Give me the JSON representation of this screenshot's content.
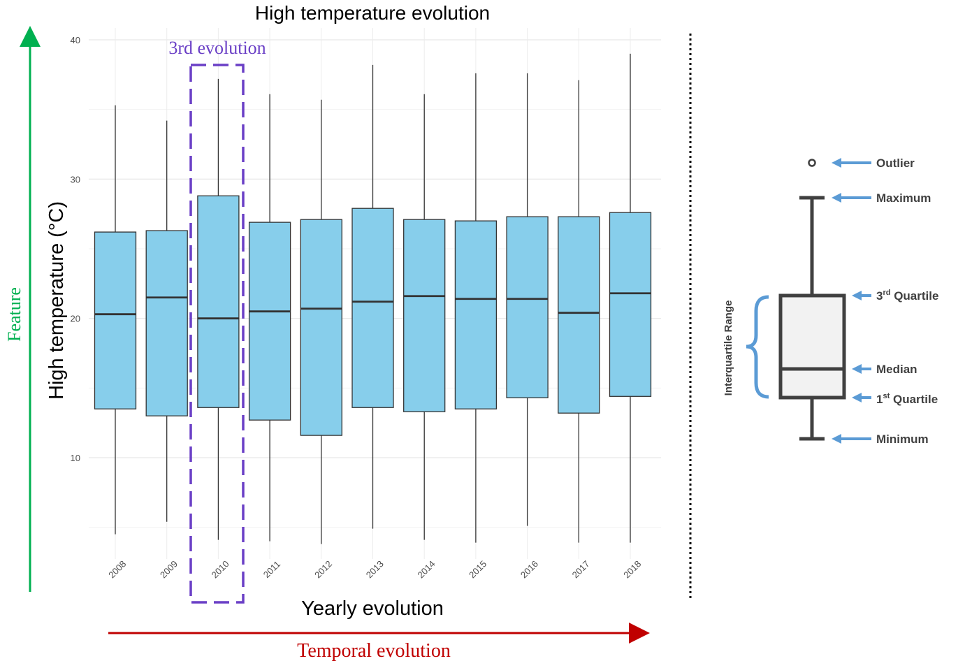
{
  "chart_data": {
    "type": "boxplot",
    "title": "High temperature evolution",
    "xlabel": "Yearly evolution",
    "ylabel": "High temperature (°C)",
    "ylim": [
      2.5,
      41
    ],
    "yticks": [
      10,
      20,
      30,
      40
    ],
    "grid": true,
    "box_color": "#87ceeb",
    "categories": [
      "2008",
      "2009",
      "2010",
      "2011",
      "2012",
      "2013",
      "2014",
      "2015",
      "2016",
      "2017",
      "2018"
    ],
    "boxes": [
      {
        "min": 4.5,
        "q1": 13.5,
        "median": 20.3,
        "q3": 26.2,
        "max": 35.3
      },
      {
        "min": 5.4,
        "q1": 13.0,
        "median": 21.5,
        "q3": 26.3,
        "max": 34.2
      },
      {
        "min": 4.1,
        "q1": 13.6,
        "median": 20.0,
        "q3": 28.8,
        "max": 37.2
      },
      {
        "min": 4.0,
        "q1": 12.7,
        "median": 20.5,
        "q3": 26.9,
        "max": 36.1
      },
      {
        "min": 3.8,
        "q1": 11.6,
        "median": 20.7,
        "q3": 27.1,
        "max": 35.7
      },
      {
        "min": 4.9,
        "q1": 13.6,
        "median": 21.2,
        "q3": 27.9,
        "max": 38.2
      },
      {
        "min": 4.1,
        "q1": 13.3,
        "median": 21.6,
        "q3": 27.1,
        "max": 36.1
      },
      {
        "min": 3.9,
        "q1": 13.5,
        "median": 21.4,
        "q3": 27.0,
        "max": 37.6
      },
      {
        "min": 5.1,
        "q1": 14.3,
        "median": 21.4,
        "q3": 27.3,
        "max": 37.6
      },
      {
        "min": 3.9,
        "q1": 13.2,
        "median": 20.4,
        "q3": 27.3,
        "max": 37.1
      },
      {
        "min": 3.9,
        "q1": 14.4,
        "median": 21.8,
        "q3": 27.6,
        "max": 39.0
      }
    ]
  },
  "annotations": {
    "highlight_label": "3rd evolution",
    "highlight_category": "2010",
    "highlight_color": "#6a3fc6",
    "vertical_arrow_label": "Feature",
    "vertical_arrow_color": "#00b050",
    "horizontal_arrow_label": "Temporal evolution",
    "horizontal_arrow_color": "#c00000"
  },
  "legend": {
    "iqr_label": "Interquartile Range",
    "outlier": "Outlier",
    "maximum": "Maximum",
    "q3_base": "3",
    "q3_sup": "rd",
    "q3_rest": " Quartile",
    "median": "Median",
    "q1_base": "1",
    "q1_sup": "st",
    "q1_rest": " Quartile",
    "minimum": "Minimum",
    "arrow_color": "#5b9bd5",
    "box_fill": "#f2f2f2",
    "box_stroke": "#404040"
  }
}
